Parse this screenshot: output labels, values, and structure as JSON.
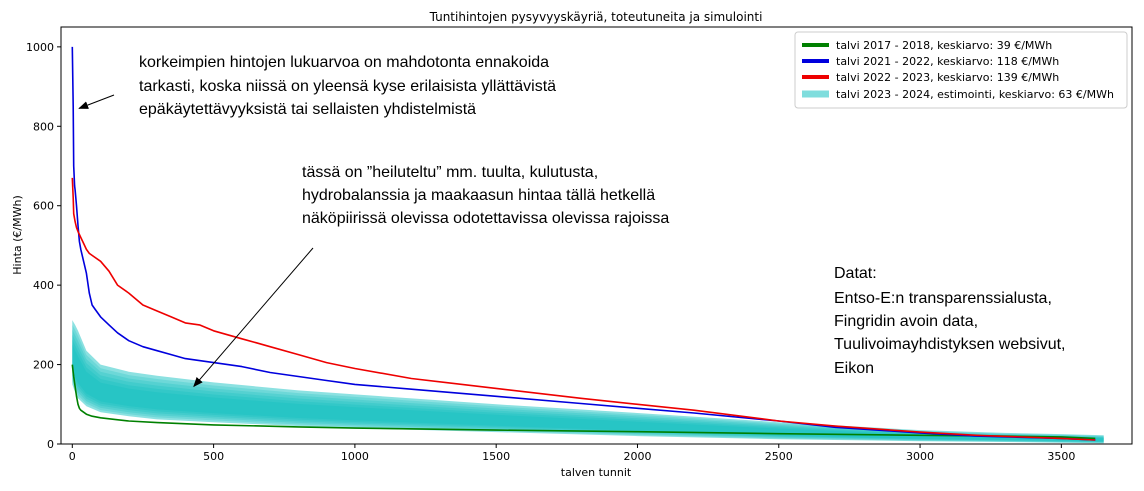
{
  "chart_data": {
    "type": "line",
    "title": "Tuntihintojen pysyvyyskäyriä, toteutuneita ja simulointi",
    "xlabel": "talven tunnit",
    "ylabel": "Hinta (€/MWh)",
    "xlim": [
      -40,
      3750
    ],
    "ylim": [
      0,
      1050
    ],
    "x_ticks": [
      0,
      500,
      1000,
      1500,
      2000,
      2500,
      3000,
      3500
    ],
    "y_ticks": [
      0,
      200,
      400,
      600,
      800,
      1000
    ],
    "grid": false,
    "legend_position": "top-right",
    "series": [
      {
        "name": "talvi 2017 - 2018, keskiarvo: 39 €/MWh",
        "color": "#008000",
        "x": [
          0,
          5,
          10,
          15,
          20,
          25,
          30,
          40,
          50,
          70,
          100,
          150,
          200,
          300,
          500,
          800,
          1000,
          1500,
          2000,
          2500,
          3000,
          3300,
          3500,
          3620
        ],
        "y": [
          200,
          170,
          145,
          120,
          100,
          90,
          85,
          80,
          75,
          70,
          66,
          62,
          58,
          54,
          48,
          43,
          40,
          35,
          31,
          26,
          22,
          20,
          18,
          14
        ]
      },
      {
        "name": "talvi 2021 - 2022, keskiarvo: 118 €/MWh",
        "color": "#0000dd",
        "x": [
          0,
          3,
          5,
          8,
          10,
          15,
          20,
          25,
          30,
          40,
          50,
          60,
          70,
          80,
          100,
          130,
          160,
          200,
          250,
          300,
          350,
          400,
          500,
          600,
          700,
          800,
          900,
          1000,
          1200,
          1500,
          1800,
          2000,
          2200,
          2500,
          2700,
          3000,
          3200,
          3500,
          3620
        ],
        "y": [
          1000,
          850,
          700,
          650,
          640,
          600,
          550,
          510,
          490,
          460,
          430,
          380,
          350,
          340,
          320,
          300,
          280,
          260,
          245,
          235,
          225,
          215,
          205,
          195,
          180,
          170,
          160,
          150,
          138,
          120,
          102,
          90,
          78,
          58,
          42,
          28,
          20,
          14,
          10
        ]
      },
      {
        "name": "talvi 2022 - 2023, keskiarvo: 139 €/MWh",
        "color": "#ee0000",
        "x": [
          0,
          3,
          5,
          10,
          15,
          20,
          30,
          40,
          50,
          60,
          70,
          100,
          130,
          160,
          200,
          250,
          300,
          350,
          400,
          450,
          500,
          550,
          600,
          650,
          700,
          800,
          900,
          1000,
          1200,
          1500,
          1800,
          2000,
          2200,
          2500,
          2700,
          3000,
          3200,
          3500,
          3620
        ],
        "y": [
          670,
          620,
          580,
          560,
          545,
          535,
          520,
          505,
          490,
          480,
          475,
          460,
          435,
          400,
          380,
          350,
          335,
          320,
          305,
          300,
          285,
          275,
          265,
          255,
          245,
          225,
          205,
          190,
          165,
          140,
          115,
          100,
          85,
          58,
          45,
          30,
          22,
          14,
          10
        ]
      }
    ],
    "bands": [
      {
        "name": "talvi 2023 - 2024, estimointi, keskiarvo: 63 €/MWh",
        "color": "#00bcbc",
        "x": [
          0,
          10,
          20,
          50,
          100,
          200,
          300,
          500,
          800,
          1000,
          1500,
          2000,
          2500,
          3000,
          3300,
          3500,
          3650
        ],
        "upper": [
          312,
          300,
          285,
          235,
          200,
          182,
          172,
          155,
          135,
          125,
          100,
          78,
          55,
          35,
          28,
          25,
          22
        ],
        "lower": [
          150,
          130,
          115,
          95,
          80,
          70,
          62,
          55,
          45,
          40,
          30,
          20,
          12,
          7,
          5,
          3,
          2
        ]
      }
    ],
    "annotations": [
      {
        "lines": [
          "korkeimpien hintojen lukuarvoa on mahdotonta ennakoida",
          "tarkasti, koska niissä on yleensä kyse erilaisista yllättävistä",
          "epäkäytettävyyksistä tai sellaisten yhdistelmistä"
        ],
        "arrow_target": [
          10,
          840
        ]
      },
      {
        "lines": [
          "tässä on ”heiluteltu” mm. tuulta, kulutusta,",
          "hydrobalanssia ja maakaasun hintaa tällä hetkellä",
          "näköpiirissä olevissa odotettavissa olevissa rajoissa"
        ],
        "arrow_target": [
          430,
          145
        ]
      },
      {
        "lines": [
          "Datat:",
          "Entso-E:n transparenssialusta,",
          "Fingridin avoin data,",
          "Tuulivoimayhdistyksen websivut,",
          "Eikon"
        ]
      }
    ]
  }
}
